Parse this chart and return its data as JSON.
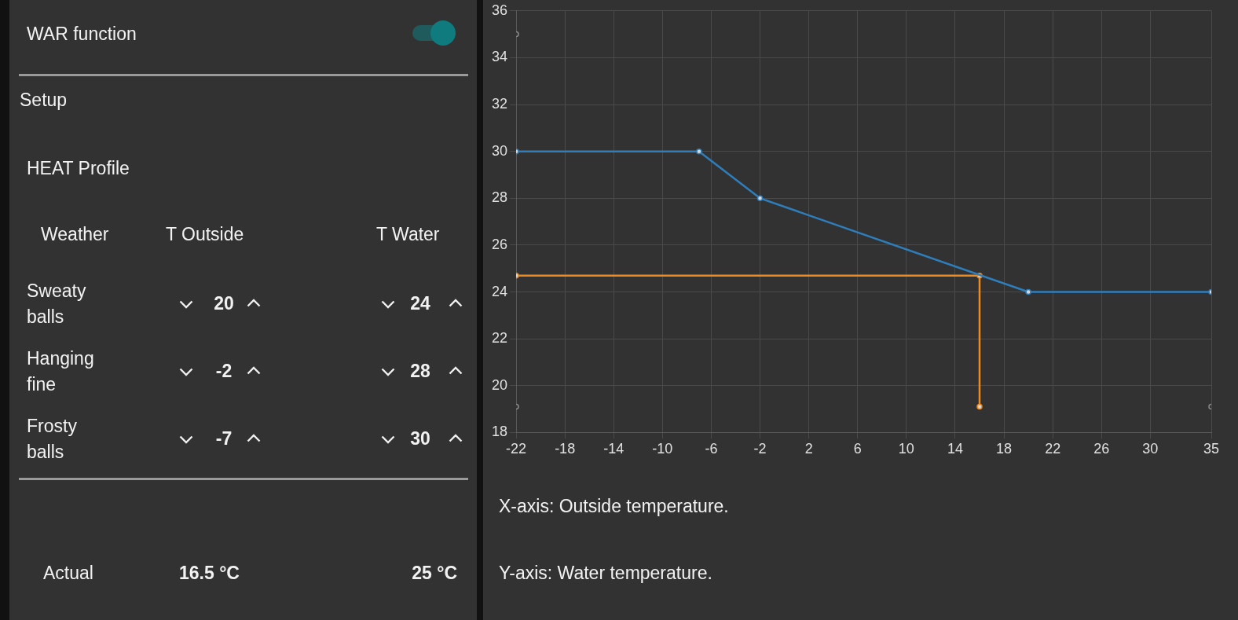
{
  "chart_data": [
    {
      "type": "other",
      "title": "WAR function",
      "subtitle": "Setup",
      "annotations": [
        "HEAT Profile",
        "Weather",
        "T Outside",
        "T Water",
        "Sweaty balls",
        "20",
        "24",
        "Hanging fine",
        "-2",
        "28",
        "Frosty balls",
        "-7",
        "30",
        "Actual",
        "16.5 °C",
        "25 °C"
      ]
    },
    {
      "type": "line",
      "xlim": [
        -22,
        35
      ],
      "xticks": [
        -22,
        -18,
        -14,
        -10,
        -6,
        -2,
        2,
        6,
        10,
        14,
        18,
        22,
        26,
        30,
        35
      ],
      "ylim": [
        18,
        36
      ],
      "yticks": [
        18,
        20,
        22,
        24,
        26,
        28,
        30,
        32,
        34,
        36
      ],
      "grid": true,
      "marker": "circle",
      "series": [
        {
          "color": "#2f7ebc",
          "x": [
            -22,
            -7,
            -2,
            20,
            35
          ],
          "values": [
            30,
            30,
            28,
            24,
            24
          ]
        },
        {
          "color": "#f08a1c",
          "x": [
            -22,
            16,
            16
          ],
          "values": [
            24.7,
            24.7,
            19.1
          ]
        },
        {
          "type": "scatter",
          "color": "#8a8a8a",
          "x": [
            -22,
            -22,
            35
          ],
          "values": [
            35,
            19.1,
            19.1
          ]
        }
      ],
      "annotations": [
        "X-axis: Outside temperature.",
        "Y-axis: Water temperature."
      ]
    }
  ]
}
